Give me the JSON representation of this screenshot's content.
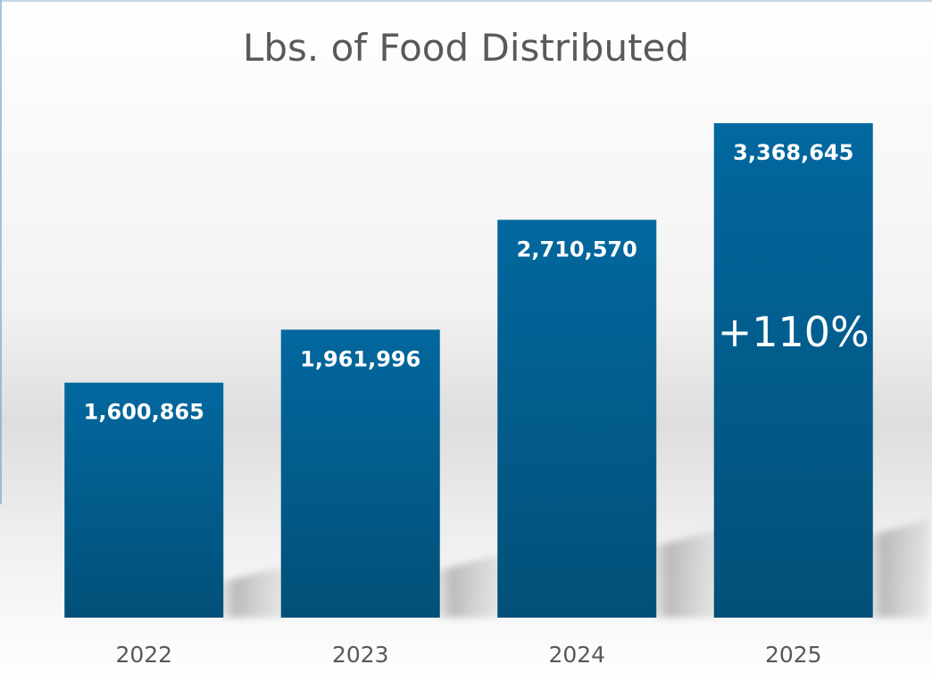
{
  "chart_data": {
    "type": "bar",
    "title": "Lbs. of Food Distributed",
    "xlabel": "",
    "ylabel": "",
    "categories": [
      "2022",
      "2023",
      "2024",
      "2025"
    ],
    "values": [
      1600865,
      1961996,
      2710570,
      3368645
    ],
    "value_labels": [
      "1,600,865",
      "1,961,996",
      "2,710,570",
      "3,368,645"
    ],
    "ylim": [
      0,
      3600000
    ],
    "grid": false,
    "legend": "none",
    "annotation": {
      "text": "+110%",
      "category": "2025"
    },
    "colors": {
      "bar_top": "#02689f",
      "bar_bottom": "#025078",
      "title": "#595959",
      "axis_text": "#595959"
    }
  }
}
